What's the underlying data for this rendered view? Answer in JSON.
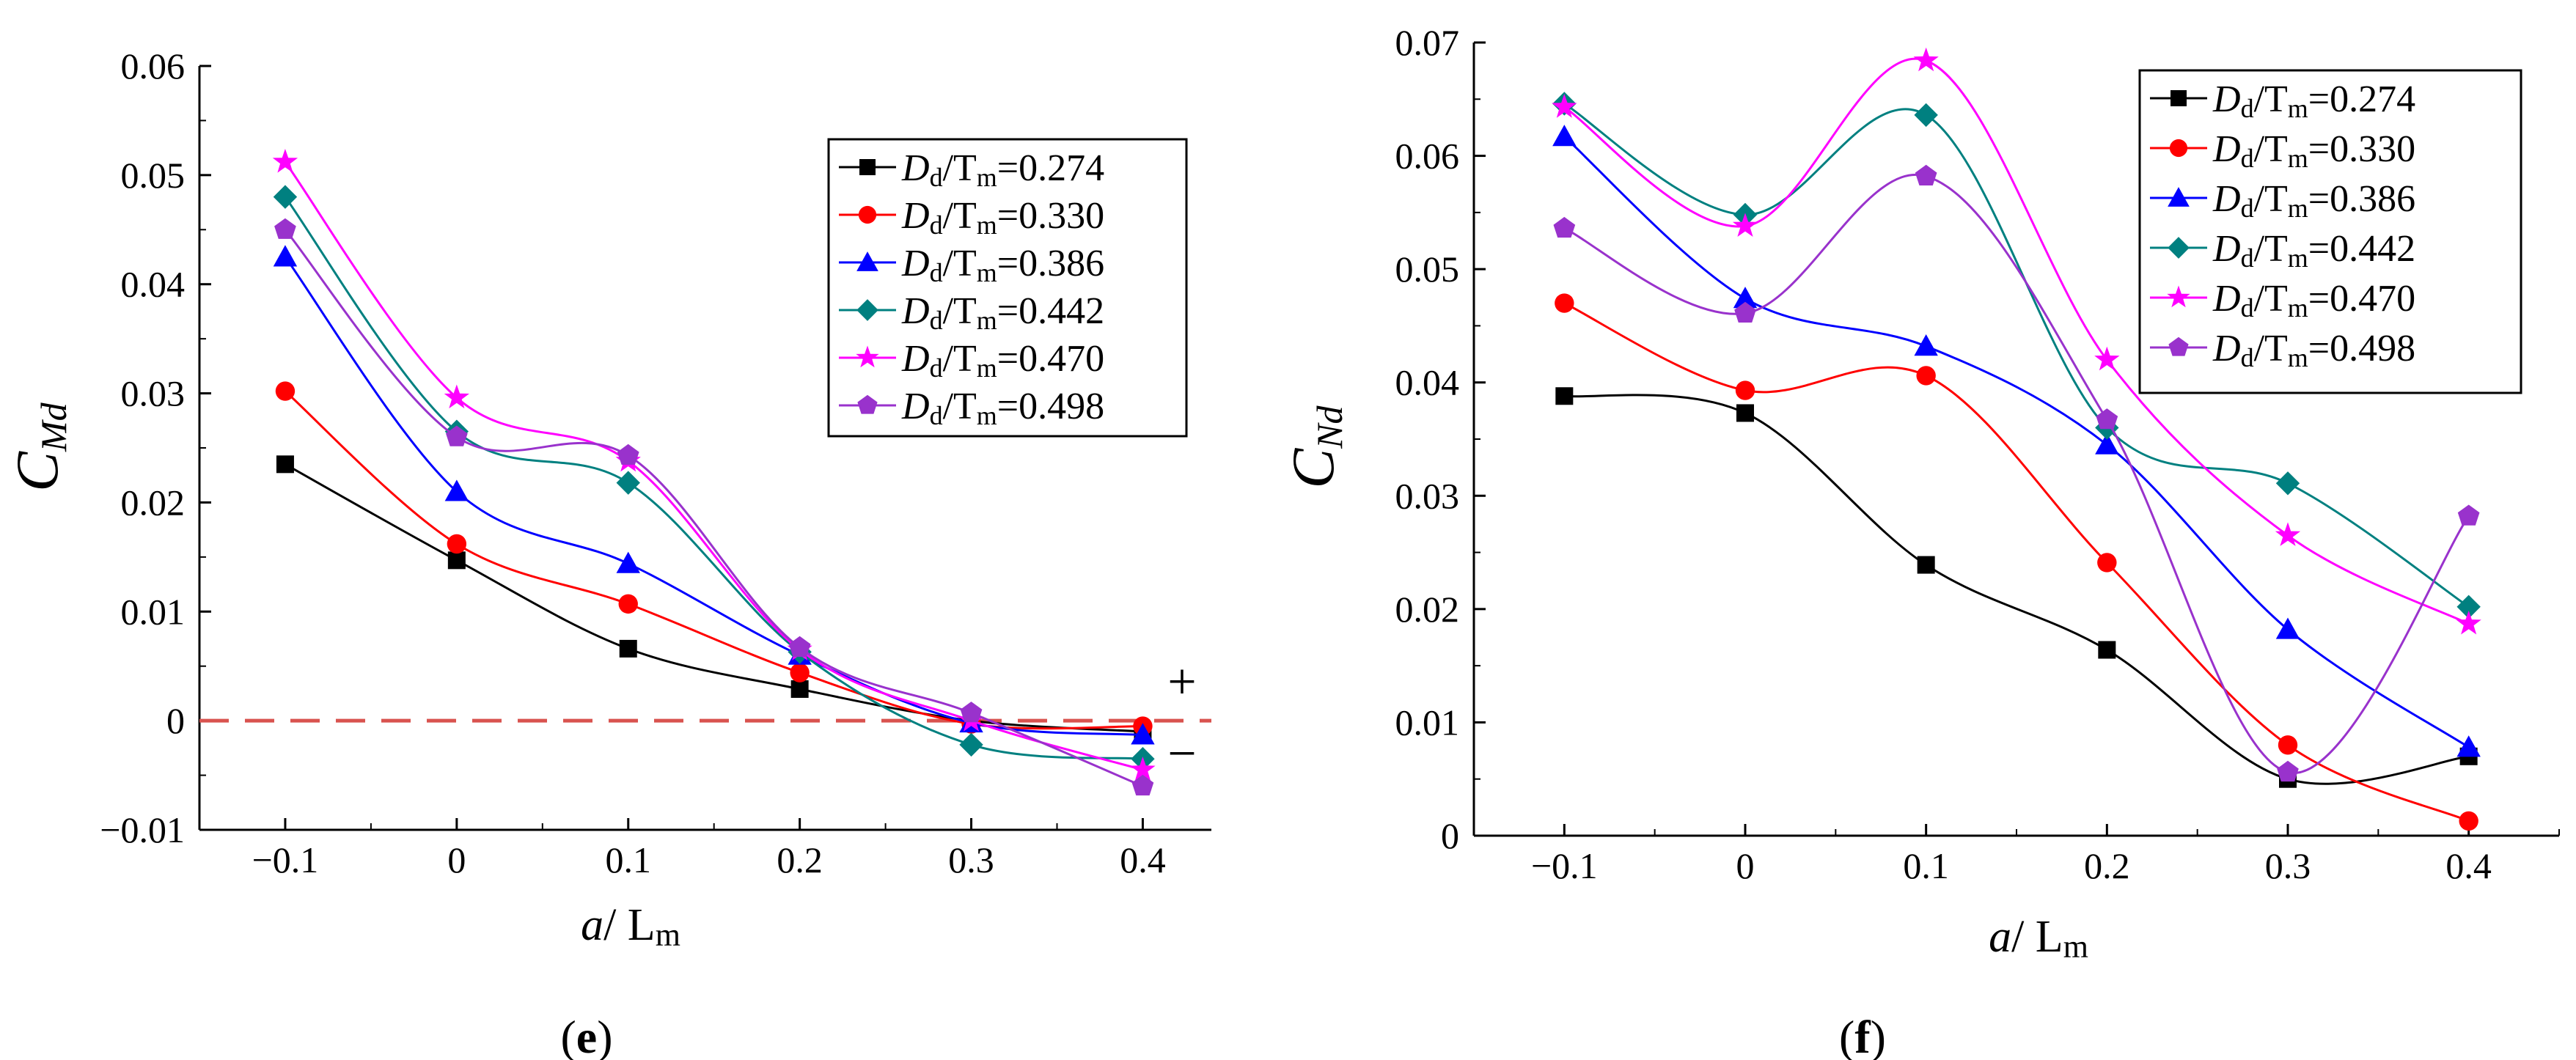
{
  "chart_data": [
    {
      "type": "line",
      "panel_label": {
        "open": "(",
        "letter": "e",
        "close": ")"
      },
      "xlabel": {
        "italic": "a",
        "text": "/ L",
        "sub": "m"
      },
      "ylabel": {
        "main": "C",
        "sub": "Md"
      },
      "xlim": [
        -0.15,
        0.44
      ],
      "ylim": [
        -0.01,
        0.06
      ],
      "x_ticks": [
        -0.1,
        0,
        0.1,
        0.2,
        0.3,
        0.4
      ],
      "x_tick_labels": [
        "−0.1",
        "0",
        "0.1",
        "0.2",
        "0.3",
        "0.4"
      ],
      "y_ticks": [
        -0.01,
        0,
        0.01,
        0.02,
        0.03,
        0.04,
        0.05,
        0.06
      ],
      "y_tick_labels": [
        "−0.01",
        "0",
        "0.01",
        "0.02",
        "0.03",
        "0.04",
        "0.05",
        "0.06"
      ],
      "x": [
        -0.1,
        0,
        0.1,
        0.2,
        0.3,
        0.4
      ],
      "reference_line": {
        "y": 0,
        "style": "dashed",
        "color": "#d9534f"
      },
      "sign_annotations": [
        {
          "text": "+",
          "position": "above"
        },
        {
          "text": "−",
          "position": "below"
        }
      ],
      "legend_position": "top-right",
      "series": [
        {
          "name": "Dd/Tm=0.274",
          "legend": {
            "D": "D",
            "dsub": "d",
            "T": "/T",
            "tsub": "m",
            "val": "=0.274"
          },
          "color": "#000000",
          "marker": "square",
          "values": [
            0.0235,
            0.0147,
            0.0066,
            0.0029,
            0.0,
            -0.001
          ]
        },
        {
          "name": "Dd/Tm=0.330",
          "legend": {
            "D": "D",
            "dsub": "d",
            "T": "/T",
            "tsub": "m",
            "val": "=0.330"
          },
          "color": "#ff0000",
          "marker": "circle",
          "values": [
            0.0302,
            0.0162,
            0.0107,
            0.0044,
            -0.0003,
            -0.0005
          ]
        },
        {
          "name": "Dd/Tm=0.386",
          "legend": {
            "D": "D",
            "dsub": "d",
            "T": "/T",
            "tsub": "m",
            "val": "=0.386"
          },
          "color": "#0000ff",
          "marker": "triangle",
          "values": [
            0.0425,
            0.021,
            0.0144,
            0.006,
            -0.0002,
            -0.0013
          ]
        },
        {
          "name": "Dd/Tm=0.442",
          "legend": {
            "D": "D",
            "dsub": "d",
            "T": "/T",
            "tsub": "m",
            "val": "=0.442"
          },
          "color": "#008080",
          "marker": "diamond",
          "values": [
            0.048,
            0.0265,
            0.0218,
            0.0063,
            -0.0022,
            -0.0035
          ]
        },
        {
          "name": "Dd/Tm=0.470",
          "legend": {
            "D": "D",
            "dsub": "d",
            "T": "/T",
            "tsub": "m",
            "val": "=0.470"
          },
          "color": "#ff00ff",
          "marker": "star",
          "values": [
            0.0512,
            0.0296,
            0.0238,
            0.0065,
            0.0,
            -0.0045
          ]
        },
        {
          "name": "Dd/Tm=0.498",
          "legend": {
            "D": "D",
            "dsub": "d",
            "T": "/T",
            "tsub": "m",
            "val": "=0.498"
          },
          "color": "#9932cc",
          "marker": "pentagon",
          "values": [
            0.045,
            0.026,
            0.0243,
            0.0067,
            0.0007,
            -0.006
          ]
        }
      ]
    },
    {
      "type": "line",
      "panel_label": {
        "open": "(",
        "letter": "f",
        "close": ")"
      },
      "xlabel": {
        "italic": "a",
        "text": "/ L",
        "sub": "m"
      },
      "ylabel": {
        "main": "C",
        "sub": "Nd"
      },
      "xlim": [
        -0.15,
        0.45
      ],
      "ylim": [
        0,
        0.07
      ],
      "x_ticks": [
        -0.1,
        0,
        0.1,
        0.2,
        0.3,
        0.4
      ],
      "x_tick_labels": [
        "−0.1",
        "0",
        "0.1",
        "0.2",
        "0.3",
        "0.4"
      ],
      "y_ticks": [
        0,
        0.01,
        0.02,
        0.03,
        0.04,
        0.05,
        0.06,
        0.07
      ],
      "y_tick_labels": [
        "0",
        "0.01",
        "0.02",
        "0.03",
        "0.04",
        "0.05",
        "0.06",
        "0.07"
      ],
      "x": [
        -0.1,
        0,
        0.1,
        0.2,
        0.3,
        0.4
      ],
      "legend_position": "top-right",
      "series": [
        {
          "name": "Dd/Tm=0.274",
          "legend": {
            "D": "D",
            "dsub": "d",
            "T": "/T",
            "tsub": "m",
            "val": "=0.274"
          },
          "color": "#000000",
          "marker": "square",
          "values": [
            0.0388,
            0.0373,
            0.0239,
            0.0164,
            0.005,
            0.007
          ]
        },
        {
          "name": "Dd/Tm=0.330",
          "legend": {
            "D": "D",
            "dsub": "d",
            "T": "/T",
            "tsub": "m",
            "val": "=0.330"
          },
          "color": "#ff0000",
          "marker": "circle",
          "values": [
            0.047,
            0.0393,
            0.0406,
            0.0241,
            0.008,
            0.0013
          ]
        },
        {
          "name": "Dd/Tm=0.386",
          "legend": {
            "D": "D",
            "dsub": "d",
            "T": "/T",
            "tsub": "m",
            "val": "=0.386"
          },
          "color": "#0000ff",
          "marker": "triangle",
          "values": [
            0.0617,
            0.0474,
            0.0432,
            0.0345,
            0.0182,
            0.0078
          ]
        },
        {
          "name": "Dd/Tm=0.442",
          "legend": {
            "D": "D",
            "dsub": "d",
            "T": "/T",
            "tsub": "m",
            "val": "=0.442"
          },
          "color": "#008080",
          "marker": "diamond",
          "values": [
            0.0646,
            0.0548,
            0.0636,
            0.036,
            0.0311,
            0.0202
          ]
        },
        {
          "name": "Dd/Tm=0.470",
          "legend": {
            "D": "D",
            "dsub": "d",
            "T": "/T",
            "tsub": "m",
            "val": "=0.470"
          },
          "color": "#ff00ff",
          "marker": "star",
          "values": [
            0.0643,
            0.0538,
            0.0684,
            0.042,
            0.0265,
            0.0187
          ]
        },
        {
          "name": "Dd/Tm=0.498",
          "legend": {
            "D": "D",
            "dsub": "d",
            "T": "/T",
            "tsub": "m",
            "val": "=0.498"
          },
          "color": "#9932cc",
          "marker": "pentagon",
          "values": [
            0.0536,
            0.0461,
            0.0582,
            0.0367,
            0.0056,
            0.0282
          ]
        }
      ]
    }
  ]
}
